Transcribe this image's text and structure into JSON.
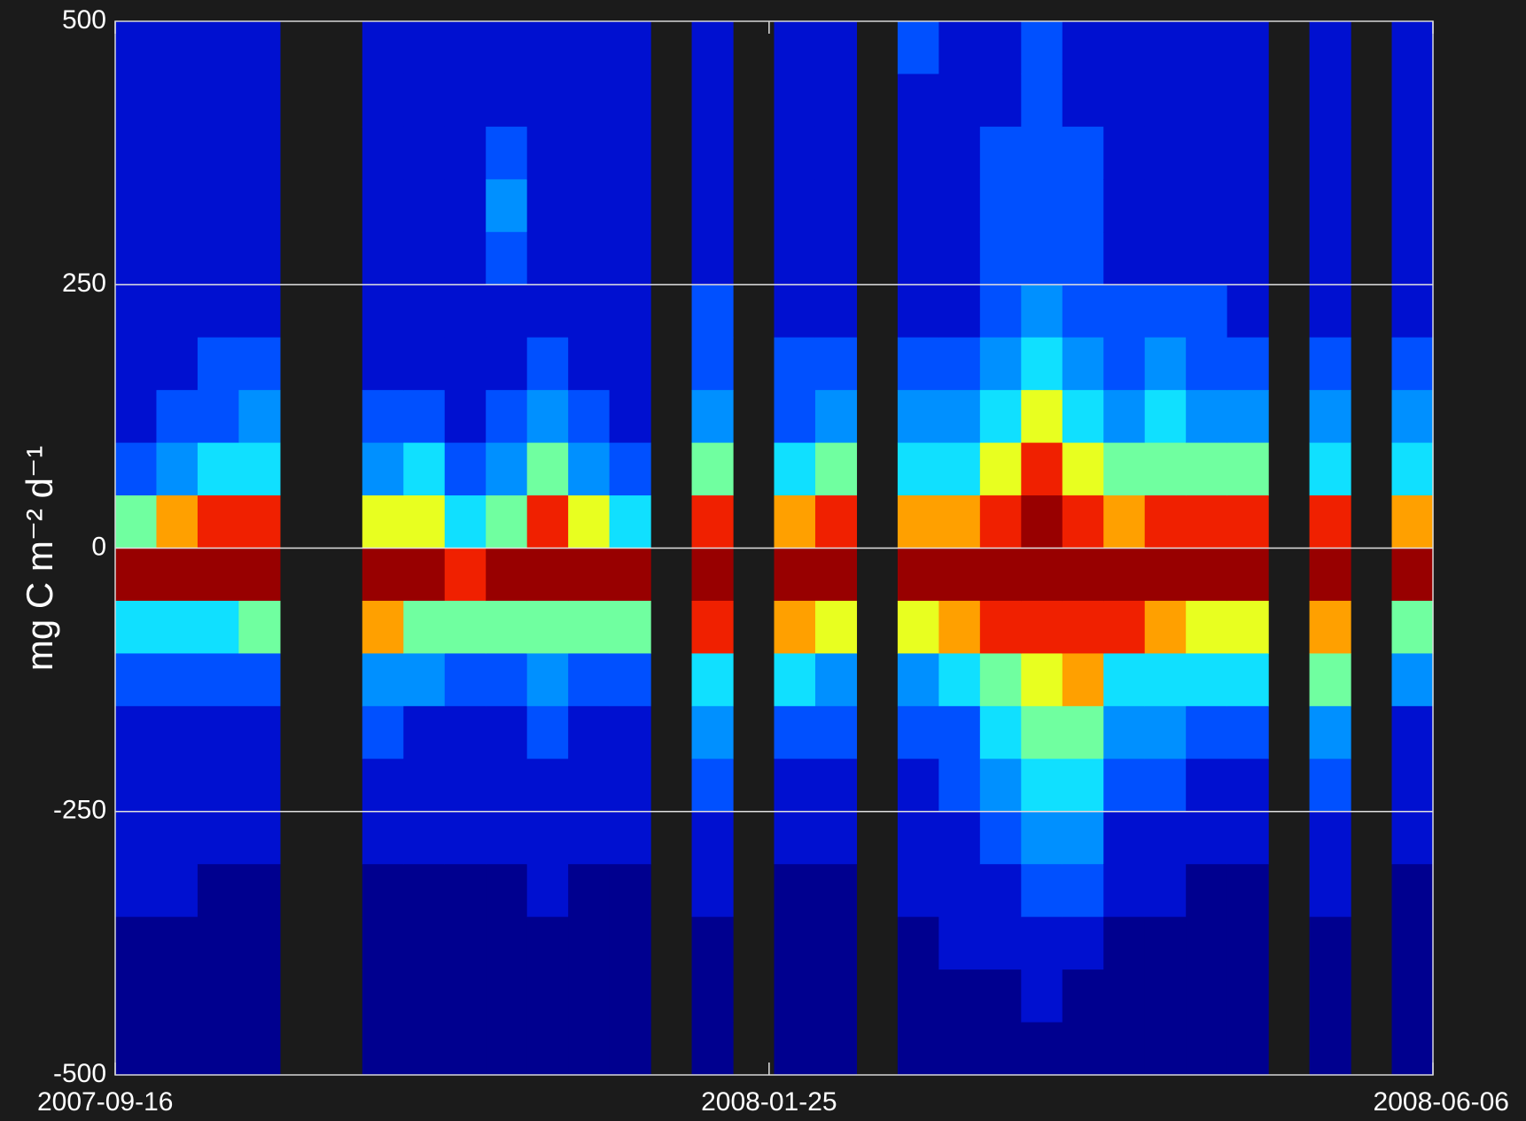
{
  "chart_data": {
    "type": "heatmap",
    "ylabel": "mg C m⁻² d⁻¹",
    "xlim": [
      "2007-09-16",
      "2008-06-06"
    ],
    "xticks": [
      "2007-09-16",
      "2008-01-25",
      "2008-06-06"
    ],
    "ylim": [
      -500,
      500
    ],
    "yticks": [
      500,
      250,
      0,
      -250,
      -500
    ],
    "grid": true,
    "colors": [
      "#00008f",
      "#0010d0",
      "#0050ff",
      "#0090ff",
      "#10e0ff",
      "#70ffa0",
      "#e8ff20",
      "#ffa000",
      "#f02000",
      "#980000"
    ],
    "z": [
      [
        1,
        1,
        1,
        1,
        1,
        1,
        1,
        1,
        2,
        5,
        9,
        4,
        2,
        1,
        1,
        1,
        1,
        0,
        0,
        0
      ],
      [
        1,
        1,
        1,
        1,
        1,
        1,
        1,
        2,
        3,
        7,
        9,
        4,
        2,
        1,
        1,
        1,
        1,
        0,
        0,
        0
      ],
      [
        1,
        1,
        1,
        1,
        1,
        1,
        2,
        2,
        4,
        8,
        9,
        4,
        2,
        1,
        1,
        1,
        0,
        0,
        0,
        0
      ],
      [
        1,
        1,
        1,
        1,
        1,
        1,
        2,
        3,
        4,
        8,
        9,
        5,
        2,
        1,
        1,
        1,
        0,
        0,
        0,
        0
      ],
      null,
      null,
      [
        1,
        1,
        1,
        1,
        1,
        1,
        1,
        2,
        3,
        6,
        9,
        7,
        3,
        2,
        1,
        1,
        0,
        0,
        0,
        0
      ],
      [
        1,
        1,
        1,
        1,
        1,
        1,
        1,
        2,
        4,
        6,
        9,
        5,
        3,
        1,
        1,
        1,
        0,
        0,
        0,
        0
      ],
      [
        1,
        1,
        1,
        1,
        1,
        1,
        1,
        1,
        2,
        4,
        8,
        5,
        2,
        1,
        1,
        1,
        0,
        0,
        0,
        0
      ],
      [
        1,
        1,
        2,
        3,
        2,
        1,
        1,
        2,
        3,
        5,
        9,
        5,
        2,
        1,
        1,
        1,
        0,
        0,
        0,
        0
      ],
      [
        1,
        1,
        1,
        1,
        1,
        1,
        2,
        3,
        5,
        8,
        9,
        5,
        3,
        2,
        1,
        1,
        1,
        0,
        0,
        0
      ],
      [
        1,
        1,
        1,
        1,
        1,
        1,
        1,
        2,
        3,
        6,
        9,
        5,
        2,
        1,
        1,
        1,
        0,
        0,
        0,
        0
      ],
      [
        1,
        1,
        1,
        1,
        1,
        1,
        1,
        1,
        2,
        4,
        9,
        5,
        2,
        1,
        1,
        1,
        0,
        0,
        0,
        0
      ],
      null,
      [
        1,
        1,
        1,
        1,
        1,
        2,
        2,
        3,
        5,
        8,
        9,
        8,
        4,
        3,
        2,
        1,
        1,
        0,
        0,
        0
      ],
      null,
      [
        1,
        1,
        1,
        1,
        1,
        1,
        2,
        2,
        4,
        7,
        9,
        7,
        4,
        2,
        1,
        1,
        0,
        0,
        0,
        0
      ],
      [
        1,
        1,
        1,
        1,
        1,
        1,
        2,
        3,
        5,
        8,
        9,
        6,
        3,
        2,
        1,
        1,
        0,
        0,
        0,
        0
      ],
      null,
      [
        2,
        1,
        1,
        1,
        1,
        1,
        2,
        3,
        4,
        7,
        9,
        6,
        3,
        2,
        1,
        1,
        1,
        0,
        0,
        0
      ],
      [
        1,
        1,
        1,
        1,
        1,
        1,
        2,
        3,
        4,
        7,
        9,
        7,
        4,
        2,
        2,
        1,
        1,
        1,
        0,
        0
      ],
      [
        1,
        1,
        2,
        2,
        2,
        2,
        3,
        4,
        6,
        8,
        9,
        8,
        5,
        4,
        3,
        2,
        1,
        1,
        0,
        0
      ],
      [
        2,
        2,
        2,
        2,
        2,
        3,
        4,
        6,
        8,
        9,
        9,
        8,
        6,
        5,
        4,
        3,
        2,
        1,
        1,
        0
      ],
      [
        1,
        1,
        2,
        2,
        2,
        2,
        3,
        4,
        6,
        8,
        9,
        8,
        7,
        5,
        4,
        3,
        2,
        1,
        0,
        0
      ],
      [
        1,
        1,
        1,
        1,
        1,
        2,
        2,
        3,
        5,
        7,
        9,
        8,
        4,
        3,
        2,
        1,
        1,
        0,
        0,
        0
      ],
      [
        1,
        1,
        1,
        1,
        1,
        2,
        3,
        4,
        5,
        8,
        9,
        7,
        4,
        3,
        2,
        1,
        1,
        0,
        0,
        0
      ],
      [
        1,
        1,
        1,
        1,
        1,
        2,
        2,
        3,
        5,
        8,
        9,
        6,
        4,
        2,
        1,
        1,
        0,
        0,
        0,
        0
      ],
      [
        1,
        1,
        1,
        1,
        1,
        1,
        2,
        3,
        5,
        8,
        9,
        6,
        4,
        2,
        1,
        1,
        0,
        0,
        0,
        0
      ],
      null,
      [
        1,
        1,
        1,
        1,
        1,
        1,
        2,
        3,
        4,
        8,
        9,
        7,
        5,
        3,
        2,
        1,
        1,
        0,
        0,
        0
      ],
      null,
      [
        1,
        1,
        1,
        1,
        1,
        1,
        2,
        3,
        4,
        7,
        9,
        5,
        3,
        1,
        1,
        1,
        0,
        0,
        0,
        0
      ]
    ]
  }
}
